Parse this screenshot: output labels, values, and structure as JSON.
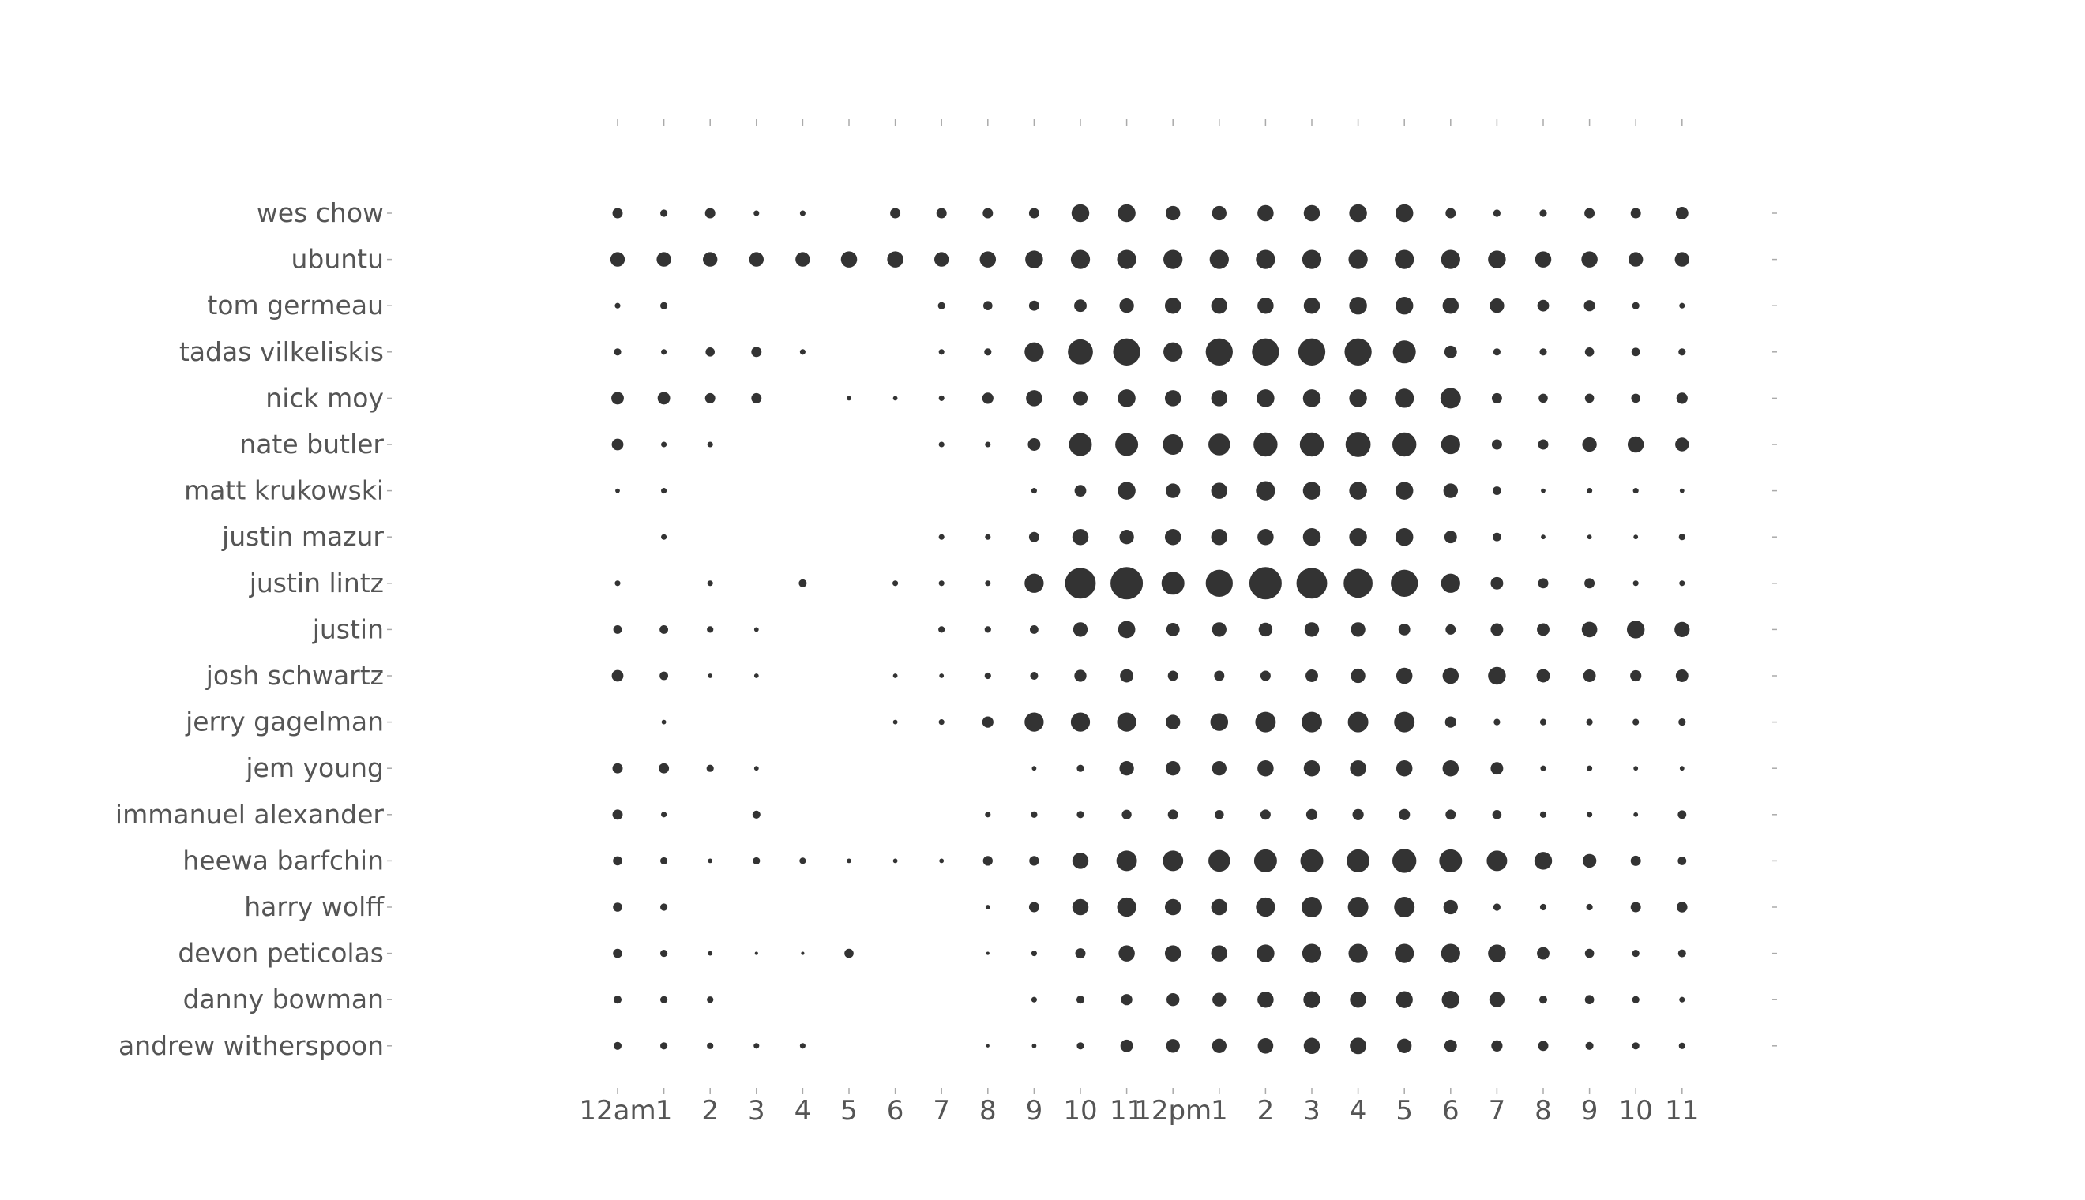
{
  "chart_data": {
    "type": "punchcard",
    "title": "",
    "xlabel": "",
    "ylabel": "",
    "marker_color": "#333333",
    "text_color": "#555555",
    "tick_color": "#aaaaaa",
    "size_scale_max": 10,
    "x_ticks": [
      "12am",
      "1",
      "2",
      "3",
      "4",
      "5",
      "6",
      "7",
      "8",
      "9",
      "10",
      "11",
      "12pm",
      "1",
      "2",
      "3",
      "4",
      "5",
      "6",
      "7",
      "8",
      "9",
      "10",
      "11"
    ],
    "rows": [
      {
        "label": "wes chow",
        "values": [
          1,
          0.5,
          1,
          0.3,
          0.3,
          0,
          1,
          1,
          1,
          1,
          3,
          3,
          2,
          2,
          2.5,
          2.5,
          3,
          3,
          1,
          0.5,
          0.5,
          1,
          1,
          1.5
        ]
      },
      {
        "label": "ubuntu",
        "values": [
          2,
          2,
          2,
          2,
          2,
          2.5,
          2.5,
          2,
          2.5,
          3,
          3.5,
          3.5,
          3.5,
          3.5,
          3.5,
          3.5,
          3.5,
          3.5,
          3.5,
          3,
          2.5,
          2.5,
          2,
          2
        ]
      },
      {
        "label": "tom germeau",
        "values": [
          0.3,
          0.5,
          0,
          0,
          0,
          0,
          0,
          0.5,
          0.8,
          1,
          1.5,
          2,
          2.5,
          2.5,
          2.5,
          2.5,
          3,
          3,
          2.5,
          2,
          1.3,
          1.2,
          0.5,
          0.3
        ]
      },
      {
        "label": "tadas vilkeliskis",
        "values": [
          0.5,
          0.3,
          0.8,
          1,
          0.3,
          0,
          0,
          0.3,
          0.5,
          3.5,
          6,
          7,
          3.5,
          7,
          7,
          7,
          7,
          5,
          1.5,
          0.5,
          0.5,
          0.8,
          0.7,
          0.5
        ]
      },
      {
        "label": "nick moy",
        "values": [
          1.5,
          1.5,
          1,
          1,
          0,
          0.2,
          0.2,
          0.3,
          1.2,
          2.5,
          2,
          3,
          2.5,
          2.5,
          3,
          3,
          3,
          3.5,
          4,
          1,
          0.8,
          0.8,
          0.8,
          1.2
        ]
      },
      {
        "label": "nate butler",
        "values": [
          1.3,
          0.3,
          0.3,
          0,
          0,
          0,
          0,
          0.3,
          0.3,
          1.5,
          5,
          5,
          4,
          4.5,
          5.5,
          5.5,
          6,
          5.5,
          3.5,
          1,
          1,
          2,
          2.5,
          1.8
        ]
      },
      {
        "label": "matt krukowski",
        "values": [
          0.2,
          0.3,
          0,
          0,
          0,
          0,
          0,
          0,
          0,
          0.3,
          1.3,
          3,
          2,
          2.5,
          3.5,
          3,
          3,
          3,
          2,
          0.7,
          0.2,
          0.3,
          0.3,
          0.2
        ]
      },
      {
        "label": "justin mazur",
        "values": [
          0,
          0.3,
          0,
          0,
          0,
          0,
          0,
          0.3,
          0.3,
          1,
          2.5,
          2,
          2.5,
          2.5,
          2.5,
          3,
          3,
          3,
          1.5,
          0.7,
          0.2,
          0.2,
          0.2,
          0.4
        ]
      },
      {
        "label": "justin lintz",
        "values": [
          0.3,
          0,
          0.3,
          0,
          0.6,
          0,
          0.3,
          0.3,
          0.3,
          3.5,
          9,
          10,
          5,
          7,
          10,
          9,
          8,
          7,
          3.5,
          1.5,
          1,
          1,
          0.3,
          0.3
        ]
      },
      {
        "label": "justin",
        "values": [
          0.7,
          0.7,
          0.4,
          0.2,
          0,
          0,
          0,
          0.4,
          0.4,
          0.7,
          2,
          2.8,
          1.7,
          2,
          1.8,
          2,
          2,
          1.3,
          1,
          1.5,
          1.5,
          2.3,
          3,
          2.2
        ]
      },
      {
        "label": "josh schwartz",
        "values": [
          1.3,
          0.7,
          0.2,
          0.2,
          0,
          0,
          0.2,
          0.2,
          0.4,
          0.6,
          1.4,
          1.7,
          1,
          1,
          1,
          1.5,
          2,
          2.5,
          2.5,
          3,
          1.7,
          1.5,
          1.2,
          1.5
        ]
      },
      {
        "label": "jerry gagelman",
        "values": [
          0,
          0.2,
          0,
          0,
          0,
          0,
          0.2,
          0.3,
          1.2,
          3.5,
          3.5,
          3.5,
          2,
          3,
          4,
          4,
          4,
          4,
          1.2,
          0.4,
          0.4,
          0.4,
          0.4,
          0.5
        ]
      },
      {
        "label": "jem young",
        "values": [
          1,
          1,
          0.5,
          0.2,
          0,
          0,
          0,
          0,
          0,
          0.2,
          0.5,
          2,
          2,
          2,
          2.5,
          2.5,
          2.5,
          2.5,
          2.5,
          1.5,
          0.3,
          0.3,
          0.2,
          0.2
        ]
      },
      {
        "label": "immanuel alexander",
        "values": [
          1,
          0.3,
          0,
          0.6,
          0,
          0,
          0,
          0,
          0.3,
          0.4,
          0.5,
          0.9,
          1,
          0.8,
          1,
          1.2,
          1.2,
          1.2,
          1,
          0.8,
          0.4,
          0.3,
          0.2,
          0.7
        ]
      },
      {
        "label": "heewa barfchin",
        "values": [
          0.8,
          0.5,
          0.2,
          0.5,
          0.4,
          0.2,
          0.2,
          0.2,
          0.9,
          0.9,
          2.5,
          4,
          4,
          4.5,
          5,
          5,
          5,
          5.5,
          5,
          4,
          3,
          1.8,
          1,
          0.7
        ]
      },
      {
        "label": "harry wolff",
        "values": [
          0.8,
          0.5,
          0,
          0,
          0,
          0,
          0,
          0,
          0.2,
          1,
          2.5,
          3.5,
          2.5,
          2.5,
          3.5,
          4,
          4,
          4,
          2,
          0.5,
          0.4,
          0.4,
          1,
          1.1
        ]
      },
      {
        "label": "devon peticolas",
        "values": [
          0.8,
          0.5,
          0.2,
          0.1,
          0.1,
          0.8,
          0,
          0,
          0.1,
          0.3,
          1,
          2.5,
          2.5,
          2.5,
          3,
          3.5,
          3.5,
          3.5,
          3.5,
          3,
          1.5,
          0.8,
          0.5,
          0.6
        ]
      },
      {
        "label": "danny bowman",
        "values": [
          0.6,
          0.5,
          0.4,
          0,
          0,
          0,
          0,
          0,
          0,
          0.3,
          0.6,
          1.2,
          1.6,
          1.8,
          2.5,
          2.7,
          2.5,
          2.7,
          3,
          2.2,
          0.6,
          0.8,
          0.5,
          0.3
        ]
      },
      {
        "label": "andrew witherspoon",
        "values": [
          0.6,
          0.5,
          0.4,
          0.3,
          0.3,
          0,
          0,
          0,
          0.1,
          0.2,
          0.5,
          1.5,
          1.8,
          2,
          2.3,
          2.5,
          2.6,
          2,
          1.5,
          1.2,
          1,
          0.6,
          0.5,
          0.4
        ]
      }
    ],
    "grid": false,
    "legend": "none"
  }
}
